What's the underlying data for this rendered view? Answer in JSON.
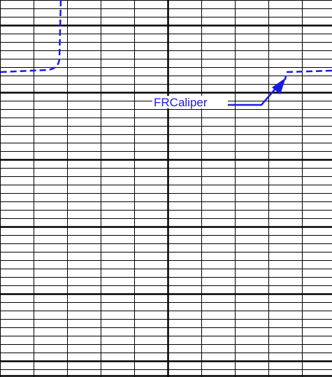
{
  "curve_label": "FRCaliper"
}
